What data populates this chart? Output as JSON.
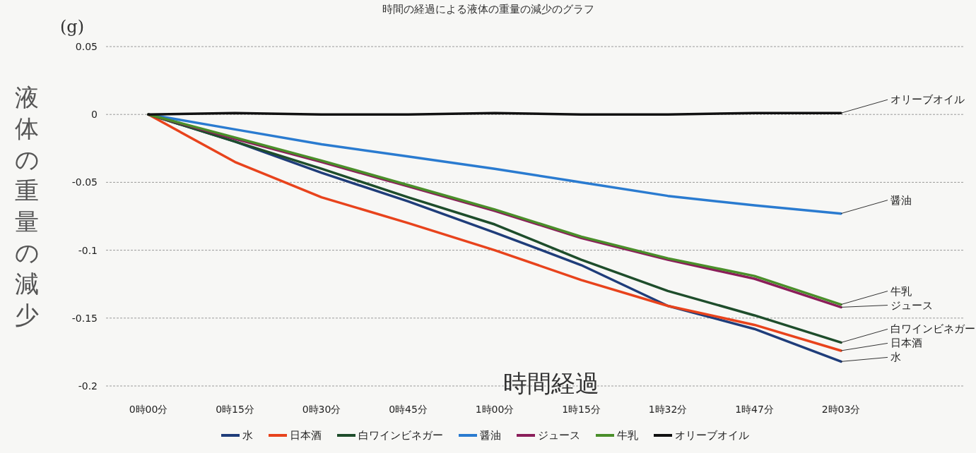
{
  "chart_data": {
    "type": "line",
    "title": "時間の経過による液体の重量の減少のグラフ",
    "xlabel": "時間経過",
    "ylabel": "液体の重量の減少",
    "annotations": [
      "(g)"
    ],
    "categories": [
      "0時00分",
      "0時15分",
      "0時30分",
      "0時45分",
      "1時00分",
      "1時15分",
      "1時32分",
      "1時47分",
      "2時03分"
    ],
    "series": [
      {
        "name": "水",
        "color": "#1f3d7a",
        "values": [
          0,
          -0.02,
          -0.043,
          -0.064,
          -0.087,
          -0.111,
          -0.141,
          -0.158,
          -0.182
        ]
      },
      {
        "name": "日本酒",
        "color": "#e8431c",
        "values": [
          0,
          -0.035,
          -0.061,
          -0.08,
          -0.1,
          -0.122,
          -0.141,
          -0.155,
          -0.174
        ]
      },
      {
        "name": "白ワインビネガー",
        "color": "#1e4d2b",
        "values": [
          0,
          -0.02,
          -0.04,
          -0.061,
          -0.081,
          -0.107,
          -0.13,
          -0.148,
          -0.168
        ]
      },
      {
        "name": "醤油",
        "color": "#2a7bd0",
        "values": [
          0,
          -0.011,
          -0.022,
          -0.031,
          -0.04,
          -0.05,
          -0.06,
          -0.067,
          -0.073
        ]
      },
      {
        "name": "ジュース",
        "color": "#8b1e5a",
        "values": [
          0,
          -0.018,
          -0.035,
          -0.053,
          -0.071,
          -0.091,
          -0.107,
          -0.121,
          -0.142
        ]
      },
      {
        "name": "牛乳",
        "color": "#4a8f2a",
        "values": [
          0,
          -0.017,
          -0.034,
          -0.052,
          -0.07,
          -0.09,
          -0.106,
          -0.119,
          -0.14
        ]
      },
      {
        "name": "オリーブオイル",
        "color": "#111111",
        "values": [
          0,
          0.001,
          0,
          0,
          0.001,
          0,
          0,
          0.001,
          0.001
        ]
      }
    ],
    "ylim": [
      -0.2,
      0.05
    ],
    "yticks": [
      -0.2,
      -0.15,
      -0.1,
      -0.05,
      0,
      0.05
    ],
    "grid": "y",
    "legend": "bottom",
    "marker": "none",
    "line_style": "solid"
  }
}
